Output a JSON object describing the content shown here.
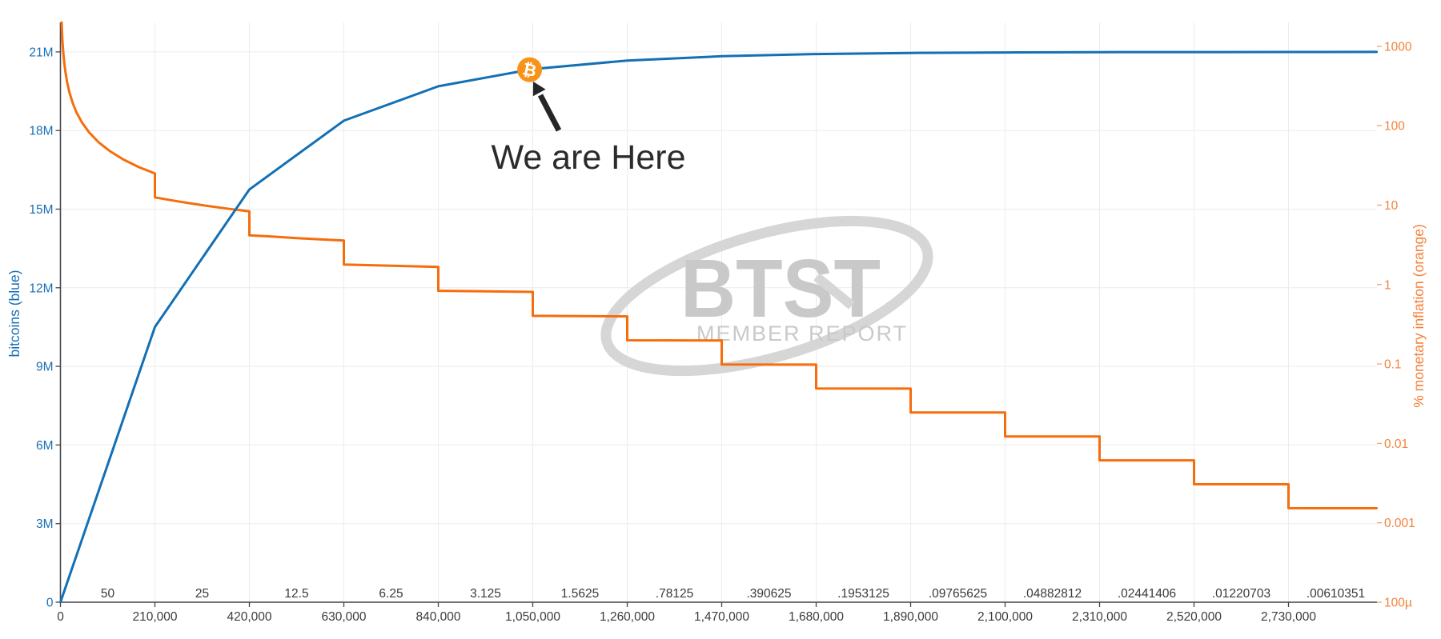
{
  "chart_data": {
    "type": "line",
    "title": "",
    "x_axis": {
      "ticks": [
        {
          "block": 0,
          "label": "0"
        },
        {
          "block": 210000,
          "label": "210,000"
        },
        {
          "block": 420000,
          "label": "420,000"
        },
        {
          "block": 630000,
          "label": "630,000"
        },
        {
          "block": 840000,
          "label": "840,000"
        },
        {
          "block": 1050000,
          "label": "1,050,000"
        },
        {
          "block": 1260000,
          "label": "1,260,000"
        },
        {
          "block": 1470000,
          "label": "1,470,000"
        },
        {
          "block": 1680000,
          "label": "1,680,000"
        },
        {
          "block": 1890000,
          "label": "1,890,000"
        },
        {
          "block": 2100000,
          "label": "2,100,000"
        },
        {
          "block": 2310000,
          "label": "2,310,000"
        },
        {
          "block": 2520000,
          "label": "2,520,000"
        },
        {
          "block": 2730000,
          "label": "2,730,000"
        }
      ],
      "max_block": 2926000
    },
    "left_axis": {
      "title": "bitcoins (blue)",
      "color": "#1a6fb5",
      "ticks": [
        {
          "m": 0,
          "label": "0"
        },
        {
          "m": 3,
          "label": "3M"
        },
        {
          "m": 6,
          "label": "6M"
        },
        {
          "m": 9,
          "label": "9M"
        },
        {
          "m": 12,
          "label": "12M"
        },
        {
          "m": 15,
          "label": "15M"
        },
        {
          "m": 18,
          "label": "18M"
        },
        {
          "m": 21,
          "label": "21M"
        }
      ],
      "range_millions": [
        0,
        21
      ]
    },
    "right_axis": {
      "title": "% monetary inflation (orange)",
      "color": "#f5813a",
      "scale": "log",
      "ticks": [
        {
          "v": 0.0001,
          "label": "100µ"
        },
        {
          "v": 0.001,
          "label": "0.001"
        },
        {
          "v": 0.01,
          "label": "0.01"
        },
        {
          "v": 0.1,
          "label": "0.1"
        },
        {
          "v": 1,
          "label": "1"
        },
        {
          "v": 10,
          "label": "10"
        },
        {
          "v": 100,
          "label": "100"
        },
        {
          "v": 1000,
          "label": "1000"
        }
      ]
    },
    "reward_eras": [
      {
        "label": "50",
        "start_block": 0,
        "end_block": 210000
      },
      {
        "label": "25",
        "start_block": 210000,
        "end_block": 420000
      },
      {
        "label": "12.5",
        "start_block": 420000,
        "end_block": 630000
      },
      {
        "label": "6.25",
        "start_block": 630000,
        "end_block": 840000
      },
      {
        "label": "3.125",
        "start_block": 840000,
        "end_block": 1050000
      },
      {
        "label": "1.5625",
        "start_block": 1050000,
        "end_block": 1260000
      },
      {
        "label": ".78125",
        "start_block": 1260000,
        "end_block": 1470000
      },
      {
        "label": ".390625",
        "start_block": 1470000,
        "end_block": 1680000
      },
      {
        "label": ".1953125",
        "start_block": 1680000,
        "end_block": 1890000
      },
      {
        "label": ".09765625",
        "start_block": 1890000,
        "end_block": 2100000
      },
      {
        "label": ".04882812",
        "start_block": 2100000,
        "end_block": 2310000
      },
      {
        "label": ".02441406",
        "start_block": 2310000,
        "end_block": 2520000
      },
      {
        "label": ".01220703",
        "start_block": 2520000,
        "end_block": 2730000
      },
      {
        "label": ".00610351",
        "start_block": 2730000,
        "end_block": 2940000
      }
    ],
    "series": [
      {
        "name": "bitcoins",
        "axis": "left",
        "color": "#1470b4",
        "points": [
          [
            0,
            0
          ],
          [
            210000,
            10.5
          ],
          [
            420000,
            15.75
          ],
          [
            630000,
            18.375
          ],
          [
            840000,
            19.6875
          ],
          [
            1050000,
            20.34375
          ],
          [
            1260000,
            20.671875
          ],
          [
            1470000,
            20.8359375
          ],
          [
            1680000,
            20.91796875
          ],
          [
            1890000,
            20.958984375
          ],
          [
            2100000,
            20.97949219
          ],
          [
            2310000,
            20.98974609
          ],
          [
            2520000,
            20.99487305
          ],
          [
            2730000,
            20.99743652
          ],
          [
            2926000,
            20.99871826
          ]
        ]
      },
      {
        "name": "% monetary inflation",
        "axis": "right",
        "color": "#f56d0c",
        "points": [
          [
            2635,
            1995
          ],
          [
            3200,
            1642
          ],
          [
            4000,
            1314
          ],
          [
            5000,
            1051
          ],
          [
            6500,
            808.6
          ],
          [
            8500,
            618.4
          ],
          [
            11000,
            477.8
          ],
          [
            15000,
            350.4
          ],
          [
            20000,
            262.8
          ],
          [
            27000,
            194.7
          ],
          [
            36000,
            146.0
          ],
          [
            48000,
            109.5
          ],
          [
            64000,
            82.1
          ],
          [
            85000,
            61.8
          ],
          [
            110000,
            47.8
          ],
          [
            140000,
            37.5
          ],
          [
            175000,
            30.0
          ],
          [
            210000,
            25.03
          ],
          [
            210000,
            12.51
          ],
          [
            260000,
            11.18
          ],
          [
            315000,
            10.01
          ],
          [
            370000,
            9.06
          ],
          [
            420000,
            8.34
          ],
          [
            420000,
            4.171
          ],
          [
            470000,
            4.03
          ],
          [
            525000,
            3.851
          ],
          [
            580000,
            3.7
          ],
          [
            630000,
            3.576
          ],
          [
            630000,
            1.788
          ],
          [
            735000,
            1.726
          ],
          [
            840000,
            1.669
          ],
          [
            840000,
            0.8343
          ],
          [
            945000,
            0.8206
          ],
          [
            1050000,
            0.8074
          ],
          [
            1050000,
            0.4037
          ],
          [
            1155000,
            0.4005
          ],
          [
            1260000,
            0.3973
          ],
          [
            1260000,
            0.19864
          ],
          [
            1470000,
            0.19707
          ],
          [
            1470000,
            0.098536
          ],
          [
            1680000,
            0.098151
          ],
          [
            1680000,
            0.049076
          ],
          [
            1890000,
            0.04898
          ],
          [
            1890000,
            0.02449
          ],
          [
            2100000,
            0.024466
          ],
          [
            2100000,
            0.012233
          ],
          [
            2310000,
            0.012227
          ],
          [
            2310000,
            0.0061134
          ],
          [
            2520000,
            0.0061098
          ],
          [
            2520000,
            0.0030549
          ],
          [
            2730000,
            0.0030542
          ],
          [
            2730000,
            0.0015271
          ],
          [
            2926000,
            0.0015268
          ]
        ]
      }
    ],
    "annotation": {
      "label": "We are Here",
      "marker_block": 1043000,
      "marker_color": "#f7931a",
      "marker_glyph": "₿",
      "text_color": "#2b2b2b"
    },
    "watermark": {
      "title": "BTST",
      "subtitle": "MEMBER REPORT",
      "color": "#c9c9c9",
      "swoosh_color": "#d6d6d6"
    },
    "grid": {
      "color": "#ececec",
      "axis_color": "#45454d"
    }
  }
}
